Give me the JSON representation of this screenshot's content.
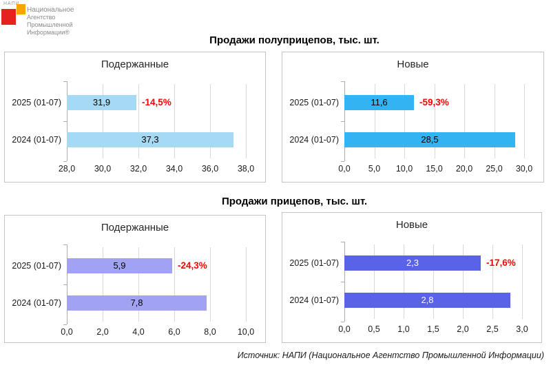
{
  "page": {
    "background": "#FFFFFF",
    "negative_color": "#FF0000",
    "source_note": "Источник: НАПИ (Национальное Агентство Промышленной Информации)"
  },
  "logo": {
    "acronym": "НАПИ",
    "lines": [
      "Национальное",
      "Агентство",
      "Промышленной",
      "Информации®"
    ],
    "red_color": "#E4231F",
    "orange_color": "#F7A600"
  },
  "sections": [
    {
      "title": "Продажи полуприцепов, тыс. шт."
    },
    {
      "title": "Продажи прицепов, тыс. шт."
    }
  ],
  "chart_data": [
    {
      "type": "bar",
      "orientation": "horizontal",
      "section": "Продажи полуприцепов, тыс. шт.",
      "title": "Подержанные",
      "units": "тыс. шт.",
      "categories": [
        "2025 (01-07)",
        "2024 (01-07)"
      ],
      "values": [
        31.9,
        37.3
      ],
      "value_labels": [
        "31,9",
        "37,3"
      ],
      "change_labels": [
        "-14,5%",
        ""
      ],
      "xlim": [
        28,
        38
      ],
      "xticks": [
        28,
        30,
        32,
        34,
        36,
        38
      ],
      "xtick_labels": [
        "28,0",
        "30,0",
        "32,0",
        "34,0",
        "36,0",
        "38,0"
      ],
      "grid": true,
      "legend": "none",
      "bar_color": "#A6D9F4",
      "value_label_color": "#000000"
    },
    {
      "type": "bar",
      "orientation": "horizontal",
      "section": "Продажи полуприцепов, тыс. шт.",
      "title": "Новые",
      "units": "тыс. шт.",
      "categories": [
        "2025 (01-07)",
        "2024 (01-07)"
      ],
      "values": [
        11.6,
        28.5
      ],
      "value_labels": [
        "11,6",
        "28,5"
      ],
      "change_labels": [
        "-59,3%",
        ""
      ],
      "xlim": [
        0,
        30
      ],
      "xticks": [
        0,
        5,
        10,
        15,
        20,
        25,
        30
      ],
      "xtick_labels": [
        "0,0",
        "5,0",
        "10,0",
        "15,0",
        "20,0",
        "25,0",
        "30,0"
      ],
      "grid": true,
      "legend": "none",
      "bar_color": "#33B3F2",
      "value_label_color": "#000000"
    },
    {
      "type": "bar",
      "orientation": "horizontal",
      "section": "Продажи прицепов, тыс. шт.",
      "title": "Подержанные",
      "units": "тыс. шт.",
      "categories": [
        "2025 (01-07)",
        "2024 (01-07)"
      ],
      "values": [
        5.9,
        7.8
      ],
      "value_labels": [
        "5,9",
        "7,8"
      ],
      "change_labels": [
        "-24,3%",
        ""
      ],
      "xlim": [
        0,
        10
      ],
      "xticks": [
        0,
        2,
        4,
        6,
        8,
        10
      ],
      "xtick_labels": [
        "0,0",
        "2,0",
        "4,0",
        "6,0",
        "8,0",
        "10,0"
      ],
      "grid": true,
      "legend": "none",
      "bar_color": "#A2A2F3",
      "value_label_color": "#000000"
    },
    {
      "type": "bar",
      "orientation": "horizontal",
      "section": "Продажи прицепов, тыс. шт.",
      "title": "Новые",
      "units": "тыс. шт.",
      "categories": [
        "2025 (01-07)",
        "2024 (01-07)"
      ],
      "values": [
        2.3,
        2.8
      ],
      "value_labels": [
        "2,3",
        "2,8"
      ],
      "change_labels": [
        "-17,6%",
        ""
      ],
      "xlim": [
        0,
        3
      ],
      "xticks": [
        0,
        0.5,
        1,
        1.5,
        2,
        2.5,
        3
      ],
      "xtick_labels": [
        "0,0",
        "0,5",
        "1,0",
        "1,5",
        "2,0",
        "2,5",
        "3,0"
      ],
      "grid": true,
      "legend": "none",
      "bar_color": "#5A62E8",
      "value_label_color": "#FFFFFF"
    }
  ]
}
